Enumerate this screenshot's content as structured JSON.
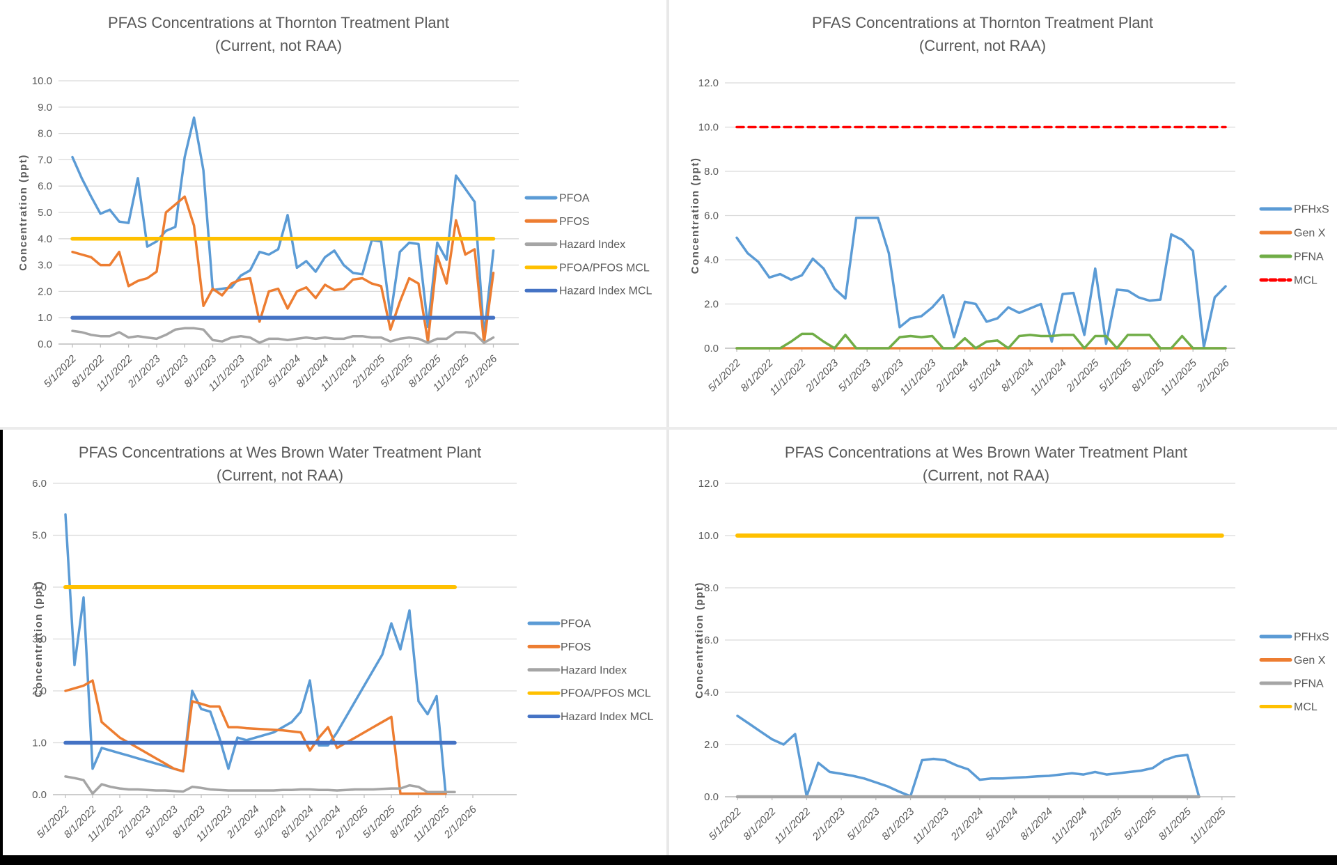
{
  "page": {
    "background": "#000000",
    "panel_background": "#ffffff"
  },
  "colors": {
    "blue": "#5B9BD5",
    "orange": "#ED7D31",
    "gray": "#A5A5A5",
    "yellow": "#FFC000",
    "dark_blue": "#4472C4",
    "red": "#FF0000",
    "green": "#70AD47",
    "text": "#595959",
    "grid": "#D9D9D9",
    "axis": "#BFBFBF"
  },
  "chart_data": [
    {
      "id": "thornton-pfoa-pfos",
      "type": "line",
      "title": "PFAS Concentrations at Thornton Treatment Plant",
      "subtitle": "(Current, not RAA)",
      "ylabel": "Concentration (ppt)",
      "ylim": [
        0,
        10
      ],
      "y_step": 1,
      "grid": true,
      "legend_position": "right",
      "x_tick_labels": [
        "5/1/2022",
        "8/1/2022",
        "11/1/2022",
        "2/1/2023",
        "5/1/2023",
        "8/1/2023",
        "11/1/2023",
        "2/1/2024",
        "5/1/2024",
        "8/1/2024",
        "11/1/2024",
        "2/1/2025",
        "5/1/2025",
        "8/1/2025",
        "11/1/2025",
        "2/1/2026"
      ],
      "months_per_tick": 3,
      "series": [
        {
          "name": "PFOA",
          "color": "blue",
          "width": 3.5,
          "values": [
            7.1,
            6.3,
            5.6,
            4.95,
            5.1,
            4.65,
            4.6,
            6.3,
            3.7,
            3.9,
            4.3,
            4.45,
            7.1,
            8.6,
            6.6,
            2.05,
            2.1,
            2.15,
            2.6,
            2.8,
            3.5,
            3.4,
            3.6,
            4.9,
            2.9,
            3.15,
            2.75,
            3.3,
            3.55,
            3.0,
            2.7,
            2.65,
            3.95,
            3.9,
            1.05,
            3.5,
            3.85,
            3.8,
            0.65,
            3.85,
            3.2,
            6.4,
            5.9,
            5.4,
            0.3,
            3.55
          ]
        },
        {
          "name": "PFOS",
          "color": "orange",
          "width": 3.5,
          "values": [
            3.5,
            3.4,
            3.3,
            3.0,
            3.0,
            3.5,
            2.2,
            2.4,
            2.5,
            2.75,
            5.0,
            5.3,
            5.6,
            4.5,
            1.45,
            2.1,
            1.85,
            2.3,
            2.45,
            2.5,
            0.85,
            2.0,
            2.1,
            1.35,
            2.0,
            2.15,
            1.75,
            2.25,
            2.05,
            2.1,
            2.45,
            2.5,
            2.3,
            2.2,
            0.55,
            1.6,
            2.5,
            2.3,
            0.1,
            3.35,
            2.3,
            4.7,
            3.4,
            3.6,
            0.05,
            2.7
          ]
        },
        {
          "name": "Hazard Index",
          "color": "gray",
          "width": 3.5,
          "values": [
            0.5,
            0.45,
            0.35,
            0.3,
            0.3,
            0.45,
            0.25,
            0.3,
            0.25,
            0.2,
            0.35,
            0.55,
            0.6,
            0.6,
            0.55,
            0.15,
            0.1,
            0.25,
            0.3,
            0.25,
            0.05,
            0.2,
            0.2,
            0.15,
            0.2,
            0.25,
            0.2,
            0.25,
            0.2,
            0.2,
            0.3,
            0.3,
            0.25,
            0.25,
            0.1,
            0.2,
            0.25,
            0.2,
            0.05,
            0.2,
            0.2,
            0.45,
            0.45,
            0.4,
            0.05,
            0.25
          ]
        },
        {
          "name": "PFOA/PFOS MCL",
          "color": "yellow",
          "width": 5.5,
          "const": 4.0,
          "from": 0,
          "to": 45
        },
        {
          "name": "Hazard Index MCL",
          "color": "dark_blue",
          "width": 5.5,
          "const": 1.0,
          "from": 0,
          "to": 45
        }
      ],
      "legend": [
        {
          "label": "PFOA",
          "color": "blue"
        },
        {
          "label": "PFOS",
          "color": "orange"
        },
        {
          "label": "Hazard Index",
          "color": "gray"
        },
        {
          "label": "PFOA/PFOS MCL",
          "color": "yellow"
        },
        {
          "label": "Hazard Index MCL",
          "color": "dark_blue"
        }
      ]
    },
    {
      "id": "thornton-pfhxs",
      "type": "line",
      "title": "PFAS Concentrations at Thornton Treatment Plant",
      "subtitle": "(Current, not RAA)",
      "ylabel": "Concentration (ppt)",
      "ylim": [
        0,
        12
      ],
      "y_step": 2,
      "grid": true,
      "legend_position": "right",
      "x_tick_labels": [
        "5/1/2022",
        "8/1/2022",
        "11/1/2022",
        "2/1/2023",
        "5/1/2023",
        "8/1/2023",
        "11/1/2023",
        "2/1/2024",
        "5/1/2024",
        "8/1/2024",
        "11/1/2024",
        "2/1/2025",
        "5/1/2025",
        "8/1/2025",
        "11/1/2025",
        "2/1/2026"
      ],
      "months_per_tick": 3,
      "series": [
        {
          "name": "PFHxS",
          "color": "blue",
          "width": 3.5,
          "values": [
            5.0,
            4.3,
            3.9,
            3.2,
            3.35,
            3.1,
            3.3,
            4.05,
            3.6,
            2.7,
            2.25,
            5.9,
            5.9,
            5.9,
            4.3,
            0.95,
            1.35,
            1.45,
            1.85,
            2.4,
            0.5,
            2.1,
            2.0,
            1.2,
            1.35,
            1.85,
            1.6,
            1.8,
            2.0,
            0.3,
            2.45,
            2.5,
            0.6,
            3.6,
            0.2,
            2.65,
            2.6,
            2.3,
            2.15,
            2.2,
            5.15,
            4.9,
            4.4,
            0.05,
            2.3,
            2.8
          ]
        },
        {
          "name": "Gen X",
          "color": "orange",
          "width": 3.5,
          "values": [
            0,
            0,
            0,
            0,
            0,
            0,
            0,
            0,
            0,
            0,
            0,
            0,
            0,
            0,
            0,
            0,
            0,
            0,
            0,
            0,
            0,
            0,
            0,
            0,
            0,
            0,
            0,
            0,
            0,
            0,
            0,
            0,
            0,
            0,
            0,
            0,
            0,
            0,
            0,
            0,
            0,
            0,
            0,
            0,
            0,
            0
          ]
        },
        {
          "name": "PFNA",
          "color": "green",
          "width": 3.5,
          "values": [
            0,
            0,
            0,
            0,
            0,
            0.3,
            0.65,
            0.65,
            0.3,
            0,
            0.6,
            0,
            0,
            0,
            0,
            0.5,
            0.55,
            0.5,
            0.55,
            0,
            0,
            0.45,
            0,
            0.3,
            0.35,
            0,
            0.55,
            0.6,
            0.55,
            0.55,
            0.6,
            0.6,
            0,
            0.55,
            0.55,
            0,
            0.6,
            0.6,
            0.6,
            0,
            0,
            0.55,
            0,
            0,
            0,
            0
          ]
        },
        {
          "name": "MCL",
          "color": "red",
          "width": 3.5,
          "dash": "10 7",
          "const": 10.0,
          "from": 0,
          "to": 45
        }
      ],
      "legend": [
        {
          "label": "PFHxS",
          "color": "blue"
        },
        {
          "label": "Gen X",
          "color": "orange"
        },
        {
          "label": "PFNA",
          "color": "green"
        },
        {
          "label": "MCL",
          "color": "red",
          "dash": "8 5"
        }
      ]
    },
    {
      "id": "wesbrown-pfoa-pfos",
      "type": "line",
      "title": "PFAS Concentrations at Wes Brown Water Treatment Plant",
      "subtitle": "(Current, not RAA)",
      "ylabel": "Concentration (ppt)",
      "ylim": [
        0,
        6
      ],
      "y_step": 1,
      "grid": true,
      "legend_position": "right",
      "x_tick_labels": [
        "5/1/2022",
        "8/1/2022",
        "11/1/2022",
        "2/1/2023",
        "5/1/2023",
        "8/1/2023",
        "11/1/2023",
        "2/1/2024",
        "5/1/2024",
        "8/1/2024",
        "11/1/2024",
        "2/1/2025",
        "5/1/2025",
        "8/1/2025",
        "11/1/2025",
        "2/1/2026"
      ],
      "months_per_tick": 3,
      "series": [
        {
          "name": "PFOA",
          "color": "blue",
          "width": 3.5,
          "values": [
            5.4,
            2.5,
            3.8,
            0.5,
            0.9,
            0.85,
            0.8,
            0.75,
            0.7,
            0.65,
            0.6,
            0.55,
            0.5,
            0.45,
            2.0,
            1.65,
            1.6,
            1.1,
            0.5,
            1.1,
            1.05,
            1.1,
            1.15,
            1.2,
            1.3,
            1.4,
            1.6,
            2.2,
            0.95,
            0.95,
            1.2,
            1.5,
            1.8,
            2.1,
            2.4,
            2.7,
            3.3,
            2.8,
            3.55,
            1.8,
            1.55,
            1.9,
            0.02,
            null,
            null,
            null
          ]
        },
        {
          "name": "PFOS",
          "color": "orange",
          "width": 3.5,
          "values": [
            2.0,
            2.05,
            2.1,
            2.2,
            1.4,
            1.25,
            1.1,
            1.0,
            0.9,
            0.8,
            0.7,
            0.6,
            0.5,
            0.45,
            1.8,
            1.75,
            1.7,
            1.7,
            1.3,
            1.3,
            1.28,
            1.27,
            1.26,
            1.25,
            1.24,
            1.22,
            1.2,
            0.85,
            1.1,
            1.3,
            0.9,
            1.0,
            1.1,
            1.2,
            1.3,
            1.4,
            1.5,
            0.02,
            0.02,
            0.02,
            0.02,
            0.02,
            0.02,
            null,
            null,
            null
          ]
        },
        {
          "name": "Hazard Index",
          "color": "gray",
          "width": 3.5,
          "values": [
            0.35,
            0.32,
            0.28,
            0.02,
            0.2,
            0.15,
            0.12,
            0.1,
            0.1,
            0.09,
            0.08,
            0.08,
            0.07,
            0.06,
            0.15,
            0.13,
            0.1,
            0.09,
            0.08,
            0.08,
            0.08,
            0.08,
            0.08,
            0.08,
            0.09,
            0.09,
            0.1,
            0.1,
            0.09,
            0.09,
            0.08,
            0.09,
            0.1,
            0.1,
            0.1,
            0.11,
            0.12,
            0.12,
            0.18,
            0.15,
            0.05,
            0.05,
            0.05,
            0.05,
            null,
            null
          ]
        },
        {
          "name": "PFOA/PFOS MCL",
          "color": "yellow",
          "width": 6,
          "const": 4.0,
          "from": 0,
          "to": 43
        },
        {
          "name": "Hazard Index MCL",
          "color": "dark_blue",
          "width": 5.5,
          "const": 1.0,
          "from": 0,
          "to": 43
        }
      ],
      "legend": [
        {
          "label": "PFOA",
          "color": "blue"
        },
        {
          "label": "PFOS",
          "color": "orange"
        },
        {
          "label": "Hazard Index",
          "color": "gray"
        },
        {
          "label": "PFOA/PFOS MCL",
          "color": "yellow"
        },
        {
          "label": "Hazard Index MCL",
          "color": "dark_blue"
        }
      ]
    },
    {
      "id": "wesbrown-pfhxs",
      "type": "line",
      "title": "PFAS Concentrations at Wes Brown Water Treatment Plant",
      "subtitle": "(Current, not RAA)",
      "ylabel": "Concentration (ppt)",
      "ylim": [
        0,
        12
      ],
      "y_step": 2,
      "grid": true,
      "legend_position": "right",
      "x_tick_labels": [
        "5/1/2022",
        "8/1/2022",
        "11/1/2022",
        "2/1/2023",
        "5/1/2023",
        "8/1/2023",
        "11/1/2023",
        "2/1/2024",
        "5/1/2024",
        "8/1/2024",
        "11/1/2024",
        "2/1/2025",
        "5/1/2025",
        "8/1/2025",
        "11/1/2025"
      ],
      "months_per_tick": 3,
      "series": [
        {
          "name": "PFHxS",
          "color": "blue",
          "width": 3.5,
          "values": [
            3.1,
            2.8,
            2.5,
            2.2,
            2.0,
            2.4,
            0.02,
            1.3,
            0.95,
            0.88,
            0.8,
            0.7,
            0.55,
            0.4,
            0.2,
            0.02,
            1.4,
            1.45,
            1.4,
            1.2,
            1.05,
            0.65,
            0.7,
            0.7,
            0.73,
            0.75,
            0.78,
            0.8,
            0.85,
            0.9,
            0.85,
            0.95,
            0.85,
            0.9,
            0.95,
            1.0,
            1.1,
            1.4,
            1.55,
            1.6,
            0.02,
            null,
            null
          ]
        },
        {
          "name": "Gen X",
          "color": "orange",
          "width": 3.5,
          "values": [
            0,
            0,
            0,
            0,
            0,
            0,
            0,
            0,
            0,
            0,
            0,
            0,
            0,
            0,
            0,
            0,
            0,
            0,
            0,
            0,
            0,
            0,
            0,
            0,
            0,
            0,
            0,
            0,
            0,
            0,
            0,
            0,
            0,
            0,
            0,
            0,
            0,
            0,
            0,
            0,
            0,
            null,
            null
          ]
        },
        {
          "name": "PFNA",
          "color": "gray",
          "width": 4.5,
          "values": [
            0,
            0,
            0,
            0,
            0,
            0,
            0,
            0,
            0,
            0,
            0,
            0,
            0,
            0,
            0,
            0,
            0,
            0,
            0,
            0,
            0,
            0,
            0,
            0,
            0,
            0,
            0,
            0,
            0,
            0,
            0,
            0,
            0,
            0,
            0,
            0,
            0,
            0,
            0,
            0,
            0,
            null,
            null
          ]
        },
        {
          "name": "MCL",
          "color": "yellow",
          "width": 6,
          "const": 10.0,
          "from": 0,
          "to": 42
        }
      ],
      "legend": [
        {
          "label": "PFHxS",
          "color": "blue"
        },
        {
          "label": "Gen X",
          "color": "orange"
        },
        {
          "label": "PFNA",
          "color": "gray"
        },
        {
          "label": "MCL",
          "color": "yellow"
        }
      ]
    }
  ]
}
